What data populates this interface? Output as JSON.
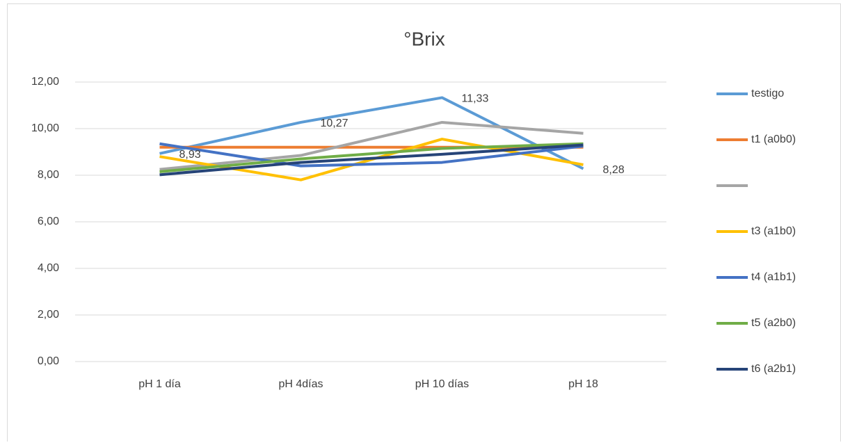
{
  "chart_data": {
    "type": "line",
    "title": "°Brix",
    "categories": [
      "pH 1 día",
      "pH 4días",
      "pH 10 días",
      "pH 18"
    ],
    "series": [
      {
        "name": "testigo",
        "color": "#5b9bd5",
        "values": [
          8.93,
          10.27,
          11.33,
          8.28
        ],
        "value_labels": [
          "8,93",
          "10,27",
          "11,33",
          "8,28"
        ]
      },
      {
        "name": "t1 (a0b0)",
        "color": "#ed7d31",
        "values": [
          9.2,
          9.2,
          9.2,
          9.2
        ]
      },
      {
        "name": null,
        "color": "#a5a5a5",
        "values": [
          8.25,
          8.85,
          10.27,
          9.8
        ]
      },
      {
        "name": "t3 (a1b0)",
        "color": "#ffc000",
        "values": [
          8.8,
          7.8,
          9.55,
          8.45
        ]
      },
      {
        "name": "t4 (a1b1)",
        "color": "#4472c4",
        "values": [
          9.35,
          8.4,
          8.55,
          9.25
        ]
      },
      {
        "name": "t5 (a2b0)",
        "color": "#70ad47",
        "values": [
          8.15,
          8.7,
          9.15,
          9.35
        ]
      },
      {
        "name": "t6 (a2b1)",
        "color": "#264478",
        "values": [
          8.02,
          8.55,
          8.9,
          9.3
        ]
      }
    ],
    "ylim": [
      0,
      12
    ],
    "yticks": [
      {
        "value": 0,
        "label": "0,00"
      },
      {
        "value": 2,
        "label": "2,00"
      },
      {
        "value": 4,
        "label": "4,00"
      },
      {
        "value": 6,
        "label": "6,00"
      },
      {
        "value": 8,
        "label": "8,00"
      },
      {
        "value": 10,
        "label": "10,00"
      },
      {
        "value": 12,
        "label": "12,00"
      }
    ],
    "grid": true
  }
}
